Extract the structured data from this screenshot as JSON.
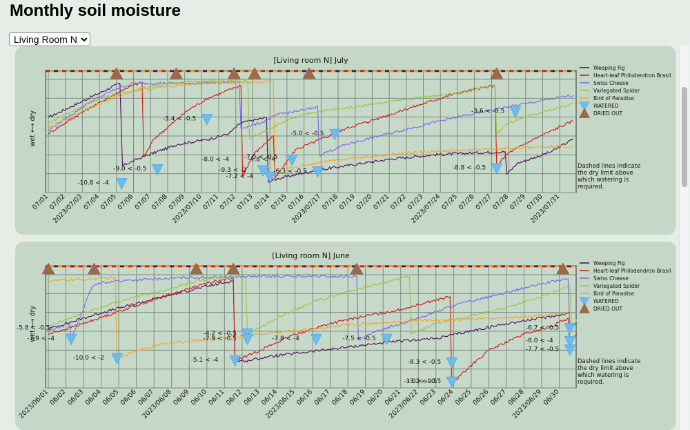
{
  "page": {
    "title": "Monthly soil moisture"
  },
  "room_selector": {
    "selected": "Living Room N"
  },
  "chart_data": [
    {
      "type": "line",
      "title": "[Living room N]    July",
      "ylabel": "wet ⟷ dry",
      "x_ticks": [
        "07/01",
        "07/02",
        "2023/07/03",
        "07/04",
        "07/05",
        "07/06",
        "07/07",
        "07/08",
        "07/09",
        "2023/07/10",
        "07/11",
        "07/12",
        "07/13",
        "07/14",
        "07/15",
        "07/16",
        "2023/07/17",
        "07/18",
        "07/19",
        "07/20",
        "07/21",
        "07/22",
        "07/23",
        "2023/07/24",
        "07/25",
        "07/26",
        "07/27",
        "07/28",
        "07/29",
        "07/30",
        "2023/07/31"
      ],
      "legend": [
        "Weeping Fig",
        "Heart-leaf Philodendron Brasil",
        "Swiss Cheese",
        "Variegated Spider",
        "Bird of Paradise",
        "WATERED",
        "DRIED OUT"
      ],
      "note": "Dashed lines indicate the dry limit above which watering is required.",
      "series": [
        {
          "name": "Weeping Fig",
          "color": "#4b0a55",
          "points": [
            [
              0,
              0.65
            ],
            [
              4.2,
              0.97
            ],
            [
              4.35,
              0.2
            ],
            [
              5.5,
              0.28
            ],
            [
              7.6,
              0.4
            ],
            [
              9.5,
              0.45
            ],
            [
              10.6,
              0.5
            ],
            [
              11.3,
              0.6
            ],
            [
              12.8,
              0.65
            ],
            [
              12.9,
              0.05
            ],
            [
              13.5,
              0.08
            ],
            [
              15.5,
              0.15
            ],
            [
              17.5,
              0.2
            ],
            [
              20,
              0.26
            ],
            [
              22.5,
              0.3
            ],
            [
              25,
              0.32
            ],
            [
              26.8,
              0.33
            ],
            [
              26.9,
              0.12
            ],
            [
              27.5,
              0.22
            ],
            [
              29.5,
              0.33
            ],
            [
              30.8,
              0.45
            ]
          ]
        },
        {
          "name": "Heart-leaf Philodendron Brasil",
          "color": "#cc1616",
          "points": [
            [
              0,
              0.5
            ],
            [
              2,
              0.7
            ],
            [
              4.5,
              0.92
            ],
            [
              5.5,
              0.98
            ],
            [
              5.6,
              0.28
            ],
            [
              6.2,
              0.45
            ],
            [
              8.2,
              0.72
            ],
            [
              9.5,
              0.84
            ],
            [
              11.3,
              0.95
            ],
            [
              11.4,
              0.1
            ],
            [
              12,
              0.3
            ],
            [
              13.2,
              0.48
            ],
            [
              13.3,
              0.08
            ],
            [
              14.5,
              0.35
            ],
            [
              16.5,
              0.48
            ],
            [
              17.5,
              0.55
            ],
            [
              19.5,
              0.65
            ],
            [
              22,
              0.78
            ],
            [
              24,
              0.88
            ],
            [
              26.2,
              0.95
            ],
            [
              26.3,
              0.2
            ],
            [
              27,
              0.32
            ],
            [
              28.5,
              0.45
            ],
            [
              30.8,
              0.62
            ]
          ]
        },
        {
          "name": "Swiss Cheese",
          "color": "#7b66e8",
          "points": [
            [
              0,
              0.53
            ],
            [
              2.5,
              0.8
            ],
            [
              4,
              0.92
            ],
            [
              5,
              0.97
            ],
            [
              8,
              0.97
            ],
            [
              11.2,
              0.98
            ],
            [
              11.3,
              0.55
            ],
            [
              12.5,
              0.6
            ],
            [
              13.5,
              0.68
            ],
            [
              15,
              0.72
            ],
            [
              15.8,
              0.75
            ],
            [
              15.9,
              0.3
            ],
            [
              17.5,
              0.4
            ],
            [
              20,
              0.5
            ],
            [
              23,
              0.62
            ],
            [
              26,
              0.72
            ],
            [
              28,
              0.78
            ],
            [
              30.8,
              0.86
            ]
          ]
        },
        {
          "name": "Variegated Spider",
          "color": "#97c442",
          "points": [
            [
              0,
              0.6
            ],
            [
              3,
              0.83
            ],
            [
              6,
              0.94
            ],
            [
              7.5,
              0.98
            ],
            [
              10,
              0.99
            ],
            [
              11.7,
              0.99
            ],
            [
              11.8,
              0.45
            ],
            [
              13,
              0.55
            ],
            [
              14,
              0.62
            ],
            [
              15.5,
              0.7
            ],
            [
              16.5,
              0.72
            ],
            [
              18,
              0.75
            ],
            [
              21,
              0.82
            ],
            [
              24,
              0.88
            ],
            [
              26.2,
              0.95
            ],
            [
              26.3,
              0.5
            ],
            [
              27,
              0.6
            ],
            [
              29,
              0.7
            ],
            [
              30.8,
              0.78
            ]
          ]
        },
        {
          "name": "Bird of Paradise",
          "color": "#f0a32a",
          "points": [
            [
              0,
              0.55
            ],
            [
              2.5,
              0.75
            ],
            [
              5,
              0.9
            ],
            [
              8,
              0.96
            ],
            [
              11,
              0.98
            ],
            [
              12,
              0.98
            ],
            [
              12.1,
              0.98
            ],
            [
              13.2,
              0.99
            ],
            [
              13.3,
              0.15
            ],
            [
              15,
              0.2
            ],
            [
              16.5,
              0.25
            ],
            [
              18.5,
              0.28
            ],
            [
              21,
              0.32
            ],
            [
              24,
              0.34
            ],
            [
              27,
              0.36
            ],
            [
              29,
              0.38
            ],
            [
              30.8,
              0.38
            ]
          ]
        }
      ],
      "dried": [
        4,
        7.5,
        10.9,
        12.1,
        15.3,
        26.3
      ],
      "watered": [
        {
          "x": 4.3,
          "y": 0.03,
          "label": "-10.8 < -4"
        },
        {
          "x": 6.4,
          "y": 0.16,
          "label": "-9.0 < -0.5"
        },
        {
          "x": 9.3,
          "y": 0.63,
          "label": "-3.4 < -0.5"
        },
        {
          "x": 12.6,
          "y": 0.15,
          "label": "-9.3 < -2"
        },
        {
          "x": 13,
          "y": 0.09,
          "label": "-7.2 < -4"
        },
        {
          "x": 14.3,
          "y": 0.25,
          "label": "-4.8 < -4"
        },
        {
          "x": 15.8,
          "y": 0.14,
          "label": "-6.3 < -0.5"
        },
        {
          "x": 16.8,
          "y": 0.49,
          "label": "-5.0 < -0.5"
        },
        {
          "x": 26.3,
          "y": 0.17,
          "label": "-8.8 < -0.5"
        },
        {
          "x": 27.4,
          "y": 0.7,
          "label": "-3.6 < -0.5"
        }
      ],
      "extra_labels": [
        {
          "x": 11.5,
          "y": 0.25,
          "label": "-8.0 < -4"
        },
        {
          "x": 14,
          "y": 0.27,
          "label": "-7.5 < -0.5"
        }
      ]
    },
    {
      "type": "line",
      "title": "[Living room N]    June",
      "ylabel": "wet ⟷ dry",
      "x_ticks": [
        "2023/06/01",
        "06/02",
        "06/03",
        "06/04",
        "06/05",
        "06/06",
        "06/07",
        "2023/06/08",
        "06/09",
        "06/10",
        "06/11",
        "06/12",
        "06/13",
        "06/14",
        "2023/06/15",
        "06/16",
        "06/17",
        "06/18",
        "06/19",
        "06/20",
        "06/21",
        "2023/06/22",
        "06/23",
        "06/24",
        "06/25",
        "06/26",
        "06/27",
        "06/28",
        "2023/06/29",
        "06/30"
      ],
      "legend": [
        "Weeping Fig",
        "Heart-leaf Philodendron Brasil",
        "Swiss Cheese",
        "Variegated Spider",
        "Bird of Paradise",
        "WATERED",
        "DRIED OUT"
      ],
      "note": "Dashed lines indicate the dry limit above which watering is required.",
      "series": [
        {
          "name": "Weeping Fig",
          "color": "#4b0a55",
          "points": [
            [
              0,
              0.5
            ],
            [
              3,
              0.65
            ],
            [
              6,
              0.78
            ],
            [
              8.5,
              0.88
            ],
            [
              10.5,
              0.95
            ],
            [
              10.6,
              0.2
            ],
            [
              11.2,
              0.2
            ],
            [
              12.5,
              0.24
            ],
            [
              15,
              0.29
            ],
            [
              17,
              0.33
            ],
            [
              19,
              0.37
            ],
            [
              21,
              0.4
            ],
            [
              22,
              0.41
            ],
            [
              24,
              0.48
            ],
            [
              26,
              0.55
            ],
            [
              28,
              0.6
            ],
            [
              29.6,
              0.65
            ]
          ]
        },
        {
          "name": "Heart-leaf Philodendron Brasil",
          "color": "#cc1616",
          "points": [
            [
              0,
              0.45
            ],
            [
              2,
              0.55
            ],
            [
              5,
              0.72
            ],
            [
              7.5,
              0.85
            ],
            [
              9,
              0.93
            ],
            [
              10.5,
              0.97
            ],
            [
              10.6,
              0.2
            ],
            [
              12,
              0.3
            ],
            [
              14,
              0.45
            ],
            [
              16,
              0.55
            ],
            [
              18,
              0.62
            ],
            [
              20,
              0.68
            ],
            [
              21.5,
              0.75
            ],
            [
              22.8,
              0.8
            ],
            [
              22.9,
              -0.02
            ],
            [
              23.6,
              0.1
            ],
            [
              25,
              0.3
            ],
            [
              27,
              0.45
            ],
            [
              28.5,
              0.52
            ],
            [
              29.5,
              0.6
            ],
            [
              29.6,
              0.35
            ],
            [
              30,
              0.45
            ]
          ]
        },
        {
          "name": "Swiss Cheese",
          "color": "#7b66e8",
          "points": [
            [
              0,
              0.48
            ],
            [
              1.2,
              0.55
            ],
            [
              1.3,
              0.4
            ],
            [
              2.5,
              0.9
            ],
            [
              3,
              0.93
            ],
            [
              4,
              0.95
            ],
            [
              8,
              0.98
            ],
            [
              12,
              0.99
            ],
            [
              16,
              0.99
            ],
            [
              17.5,
              0.99
            ],
            [
              17.6,
              0.4
            ],
            [
              19,
              0.5
            ],
            [
              21,
              0.6
            ],
            [
              23,
              0.72
            ],
            [
              25.5,
              0.82
            ],
            [
              28,
              0.92
            ],
            [
              29.5,
              0.97
            ],
            [
              29.6,
              0.5
            ],
            [
              30,
              0.55
            ]
          ]
        },
        {
          "name": "Variegated Spider",
          "color": "#97c442",
          "points": [
            [
              0,
              0.52
            ],
            [
              2,
              0.65
            ],
            [
              4.5,
              0.78
            ],
            [
              7,
              0.88
            ],
            [
              8.4,
              0.95
            ],
            [
              10.5,
              0.98
            ],
            [
              11.2,
              0.99
            ],
            [
              11.3,
              0.45
            ],
            [
              13,
              0.6
            ],
            [
              15,
              0.75
            ],
            [
              17,
              0.85
            ],
            [
              19,
              0.93
            ],
            [
              20.5,
              0.99
            ],
            [
              20.6,
              0.45
            ],
            [
              22,
              0.55
            ],
            [
              24,
              0.62
            ],
            [
              26,
              0.7
            ],
            [
              28,
              0.8
            ],
            [
              29.6,
              0.9
            ],
            [
              29.7,
              0.5
            ],
            [
              30,
              0.6
            ]
          ]
        },
        {
          "name": "Bird of Paradise",
          "color": "#f0a32a",
          "points": [
            [
              0,
              0.95
            ],
            [
              1.5,
              0.96
            ],
            [
              3,
              0.97
            ],
            [
              3.8,
              0.98
            ],
            [
              3.9,
              0.22
            ],
            [
              5,
              0.3
            ],
            [
              6.5,
              0.36
            ],
            [
              9,
              0.4
            ],
            [
              12,
              0.45
            ],
            [
              15,
              0.5
            ],
            [
              18,
              0.55
            ],
            [
              21,
              0.58
            ],
            [
              24,
              0.59
            ],
            [
              27,
              0.61
            ],
            [
              29.6,
              0.65
            ]
          ]
        }
      ],
      "dried": [
        0,
        2.6,
        8.4,
        10.5,
        17.5,
        29.2
      ],
      "watered": [
        {
          "x": 1.3,
          "y": 0.4,
          "label": "-7.9 < -4"
        },
        {
          "x": 3.9,
          "y": 0.22,
          "label": "-10.0 < -2"
        },
        {
          "x": 10.6,
          "y": 0.2,
          "label": "-5.1 < -4"
        },
        {
          "x": 11.3,
          "y": 0.45,
          "label": "-4.2 < -0.5"
        },
        {
          "x": 11.3,
          "y": 0.4,
          "label": "-7.9 < -0.5"
        },
        {
          "x": 15.2,
          "y": 0.4,
          "label": "-7.8 < -4"
        },
        {
          "x": 19.2,
          "y": 0.4,
          "label": "-7.5 < -0.5"
        },
        {
          "x": 22.9,
          "y": 0.18,
          "label": "-8.3 < -0.5"
        },
        {
          "x": 22.9,
          "y": 0.0,
          "label": "-3.2 < -0.5"
        },
        {
          "x": 29.6,
          "y": 0.5,
          "label": "-6.7 < -0.5"
        },
        {
          "x": 29.6,
          "y": 0.38,
          "label": "-8.0 < -4"
        },
        {
          "x": 29.6,
          "y": 0.3,
          "label": "-7.7 < -0.5"
        }
      ],
      "extra_labels": [
        {
          "x": 0,
          "y": 0.5,
          "label": "-5.8 < -0.5"
        },
        {
          "x": 22.6,
          "y": 0.0,
          "label": "-3.0 < -0.5"
        }
      ]
    }
  ]
}
